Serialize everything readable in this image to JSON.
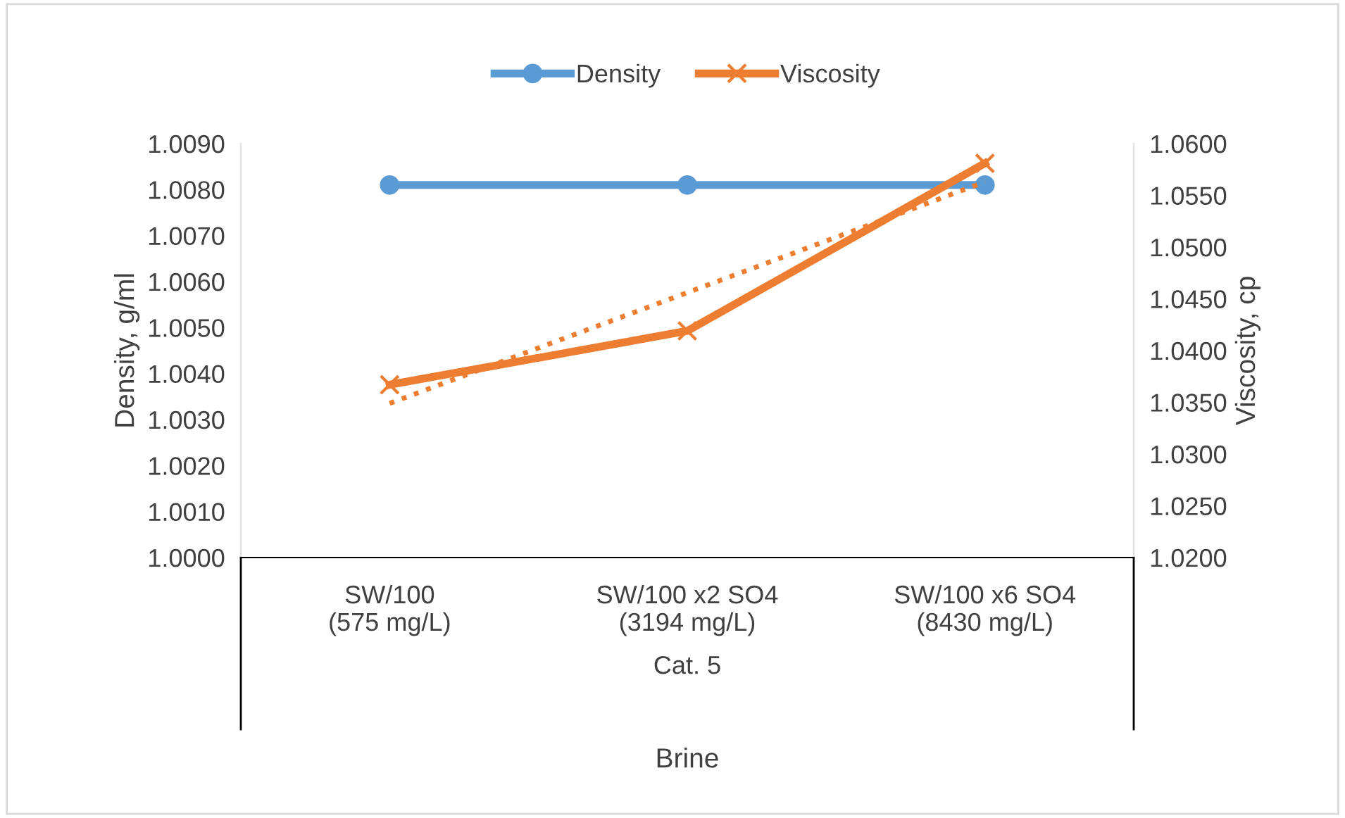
{
  "chart_data": {
    "type": "line",
    "categories": [
      "SW/100\n(575 mg/L)",
      "SW/100 x2 SO4\n(3194 mg/L)",
      "SW/100 x6 SO4\n(8430 mg/L)"
    ],
    "series": [
      {
        "name": "Density",
        "color": "#5b9bd5",
        "marker": "circle",
        "values": [
          1.0081,
          1.0081,
          1.0081
        ]
      },
      {
        "name": "Viscosity",
        "color": "#ed7d31",
        "marker": "cross",
        "axis": "y2",
        "values": [
          1.0367,
          1.0419,
          1.0581
        ]
      },
      {
        "type": "line",
        "color": "#ed7d31",
        "marker": "none",
        "line_style": "dotted",
        "axis": "y2",
        "values": [
          1.0349,
          1.0456,
          1.0563
        ]
      }
    ],
    "xlabel": "Brine",
    "ylabel": "Density, g/ml",
    "y2label": "Viscosity, cp",
    "annotations": [
      "Cat. 5"
    ],
    "ylim": [
      1.0,
      1.009
    ],
    "yticks": [
      {
        "value": 1.0,
        "label": "1.0000"
      },
      {
        "value": 1.001,
        "label": "1.0010"
      },
      {
        "value": 1.002,
        "label": "1.0020"
      },
      {
        "value": 1.003,
        "label": "1.0030"
      },
      {
        "value": 1.004,
        "label": "1.0040"
      },
      {
        "value": 1.005,
        "label": "1.0050"
      },
      {
        "value": 1.006,
        "label": "1.0060"
      },
      {
        "value": 1.007,
        "label": "1.0070"
      },
      {
        "value": 1.008,
        "label": "1.0080"
      },
      {
        "value": 1.009,
        "label": "1.0090"
      }
    ],
    "y2lim": [
      1.02,
      1.06
    ],
    "y2ticks": [
      {
        "value": 1.02,
        "label": "1.0200"
      },
      {
        "value": 1.025,
        "label": "1.0250"
      },
      {
        "value": 1.03,
        "label": "1.0300"
      },
      {
        "value": 1.035,
        "label": "1.0350"
      },
      {
        "value": 1.04,
        "label": "1.0400"
      },
      {
        "value": 1.045,
        "label": "1.0450"
      },
      {
        "value": 1.05,
        "label": "1.0500"
      },
      {
        "value": 1.055,
        "label": "1.0550"
      },
      {
        "value": 1.06,
        "label": "1.0600"
      }
    ],
    "grid": false,
    "legend": "top"
  }
}
